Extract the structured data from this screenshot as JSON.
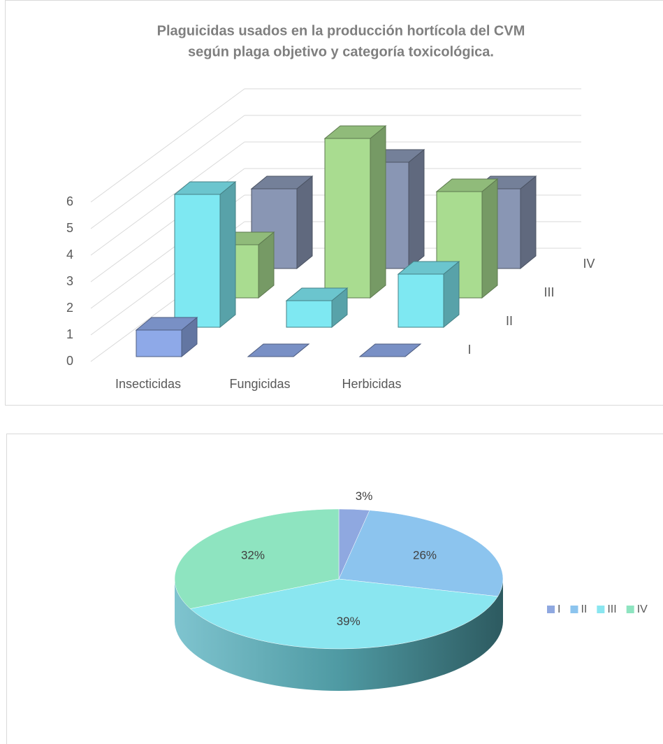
{
  "chart_data": [
    {
      "type": "bar3d",
      "title": [
        "Plaguicidas usados en la producción hortícola del CVM",
        "según plaga objetivo y categoría toxicológica."
      ],
      "categories": [
        "Insecticidas",
        "Fungicidas",
        "Herbicidas"
      ],
      "series": [
        {
          "name": "I",
          "color": "#8ea9e8",
          "values": [
            1,
            0,
            0
          ]
        },
        {
          "name": "II",
          "color": "#7ee8f2",
          "values": [
            5,
            1,
            2
          ]
        },
        {
          "name": "III",
          "color": "#a9dc90",
          "values": [
            2,
            6,
            4
          ]
        },
        {
          "name": "IV",
          "color": "#8996b4",
          "values": [
            3,
            4,
            3
          ]
        }
      ],
      "ylim": [
        0,
        6
      ],
      "yticks": [
        0,
        1,
        2,
        3,
        4,
        5,
        6
      ],
      "grid": true
    },
    {
      "type": "pie3d",
      "categories": [
        "I",
        "II",
        "III",
        "IV"
      ],
      "values": [
        3,
        26,
        39,
        32
      ],
      "value_labels": [
        "3%",
        "26%",
        "39%",
        "32%"
      ],
      "colors": [
        "#8fa8e0",
        "#8cc4ee",
        "#8ae6f0",
        "#8ee4c0"
      ],
      "legend": "right"
    }
  ]
}
